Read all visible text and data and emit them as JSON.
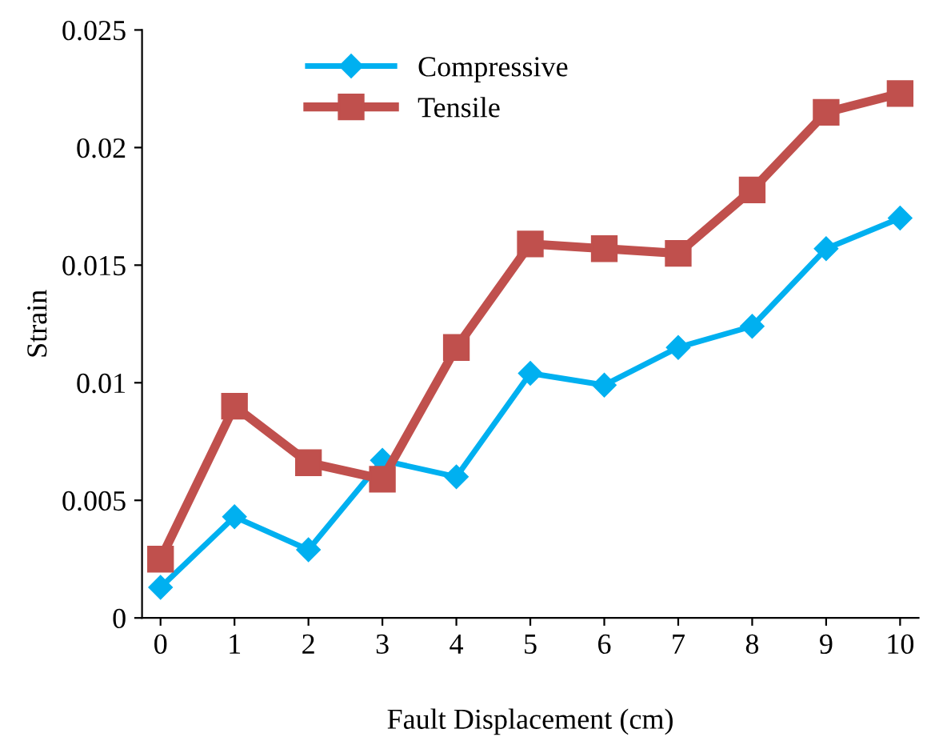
{
  "chart_data": {
    "type": "line",
    "xlabel": "Fault Displacement (cm)",
    "ylabel": "Strain",
    "x": [
      0,
      1,
      2,
      3,
      4,
      5,
      6,
      7,
      8,
      9,
      10
    ],
    "series": [
      {
        "name": "Compressive",
        "color": "#00b0f0",
        "marker": "diamond",
        "values": [
          0.0013,
          0.0043,
          0.0029,
          0.0067,
          0.006,
          0.0104,
          0.0099,
          0.0115,
          0.0124,
          0.0157,
          0.017
        ]
      },
      {
        "name": "Tensile",
        "color": "#c0504d",
        "marker": "square",
        "values": [
          0.0025,
          0.009,
          0.0066,
          0.0059,
          0.0115,
          0.0159,
          0.0157,
          0.0155,
          0.0182,
          0.0215,
          0.0223
        ]
      }
    ],
    "xlim": [
      -0.25,
      10.25
    ],
    "xticks": [
      0,
      1,
      2,
      3,
      4,
      5,
      6,
      7,
      8,
      9,
      10
    ],
    "ylim": [
      0,
      0.025
    ],
    "yticks": [
      0,
      0.005,
      0.01,
      0.015,
      0.02,
      0.025
    ],
    "grid": false,
    "legend": "top",
    "line_style": "solid"
  }
}
